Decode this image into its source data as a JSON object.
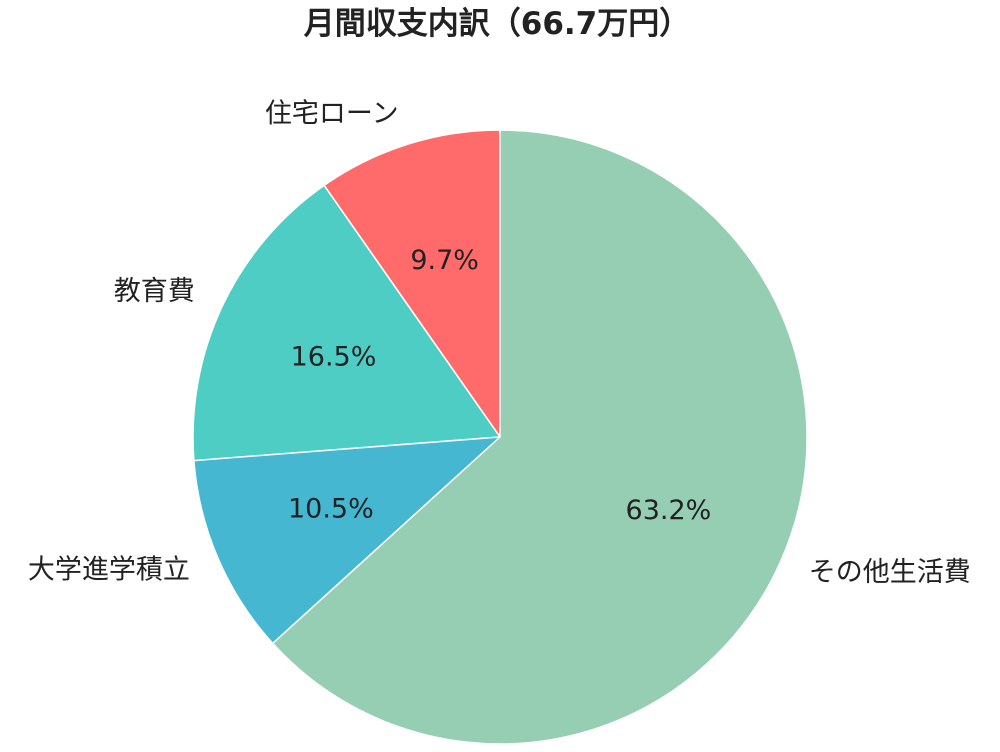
{
  "chart_data": {
    "type": "pie",
    "title": "月間収支内訳（66.7万円）",
    "start_angle_deg": 90,
    "direction": "counterclockwise",
    "slices": [
      {
        "label": "住宅ローン",
        "value": 9.7,
        "pct_label": "9.7%",
        "color": "#FF6B6B"
      },
      {
        "label": "教育費",
        "value": 16.5,
        "pct_label": "16.5%",
        "color": "#4ECDC4"
      },
      {
        "label": "大学進学積立",
        "value": 10.5,
        "pct_label": "10.5%",
        "color": "#45B7D1"
      },
      {
        "label": "その他生活費",
        "value": 63.2,
        "pct_label": "63.2%",
        "color": "#96CEB4"
      }
    ],
    "legend": "none"
  }
}
